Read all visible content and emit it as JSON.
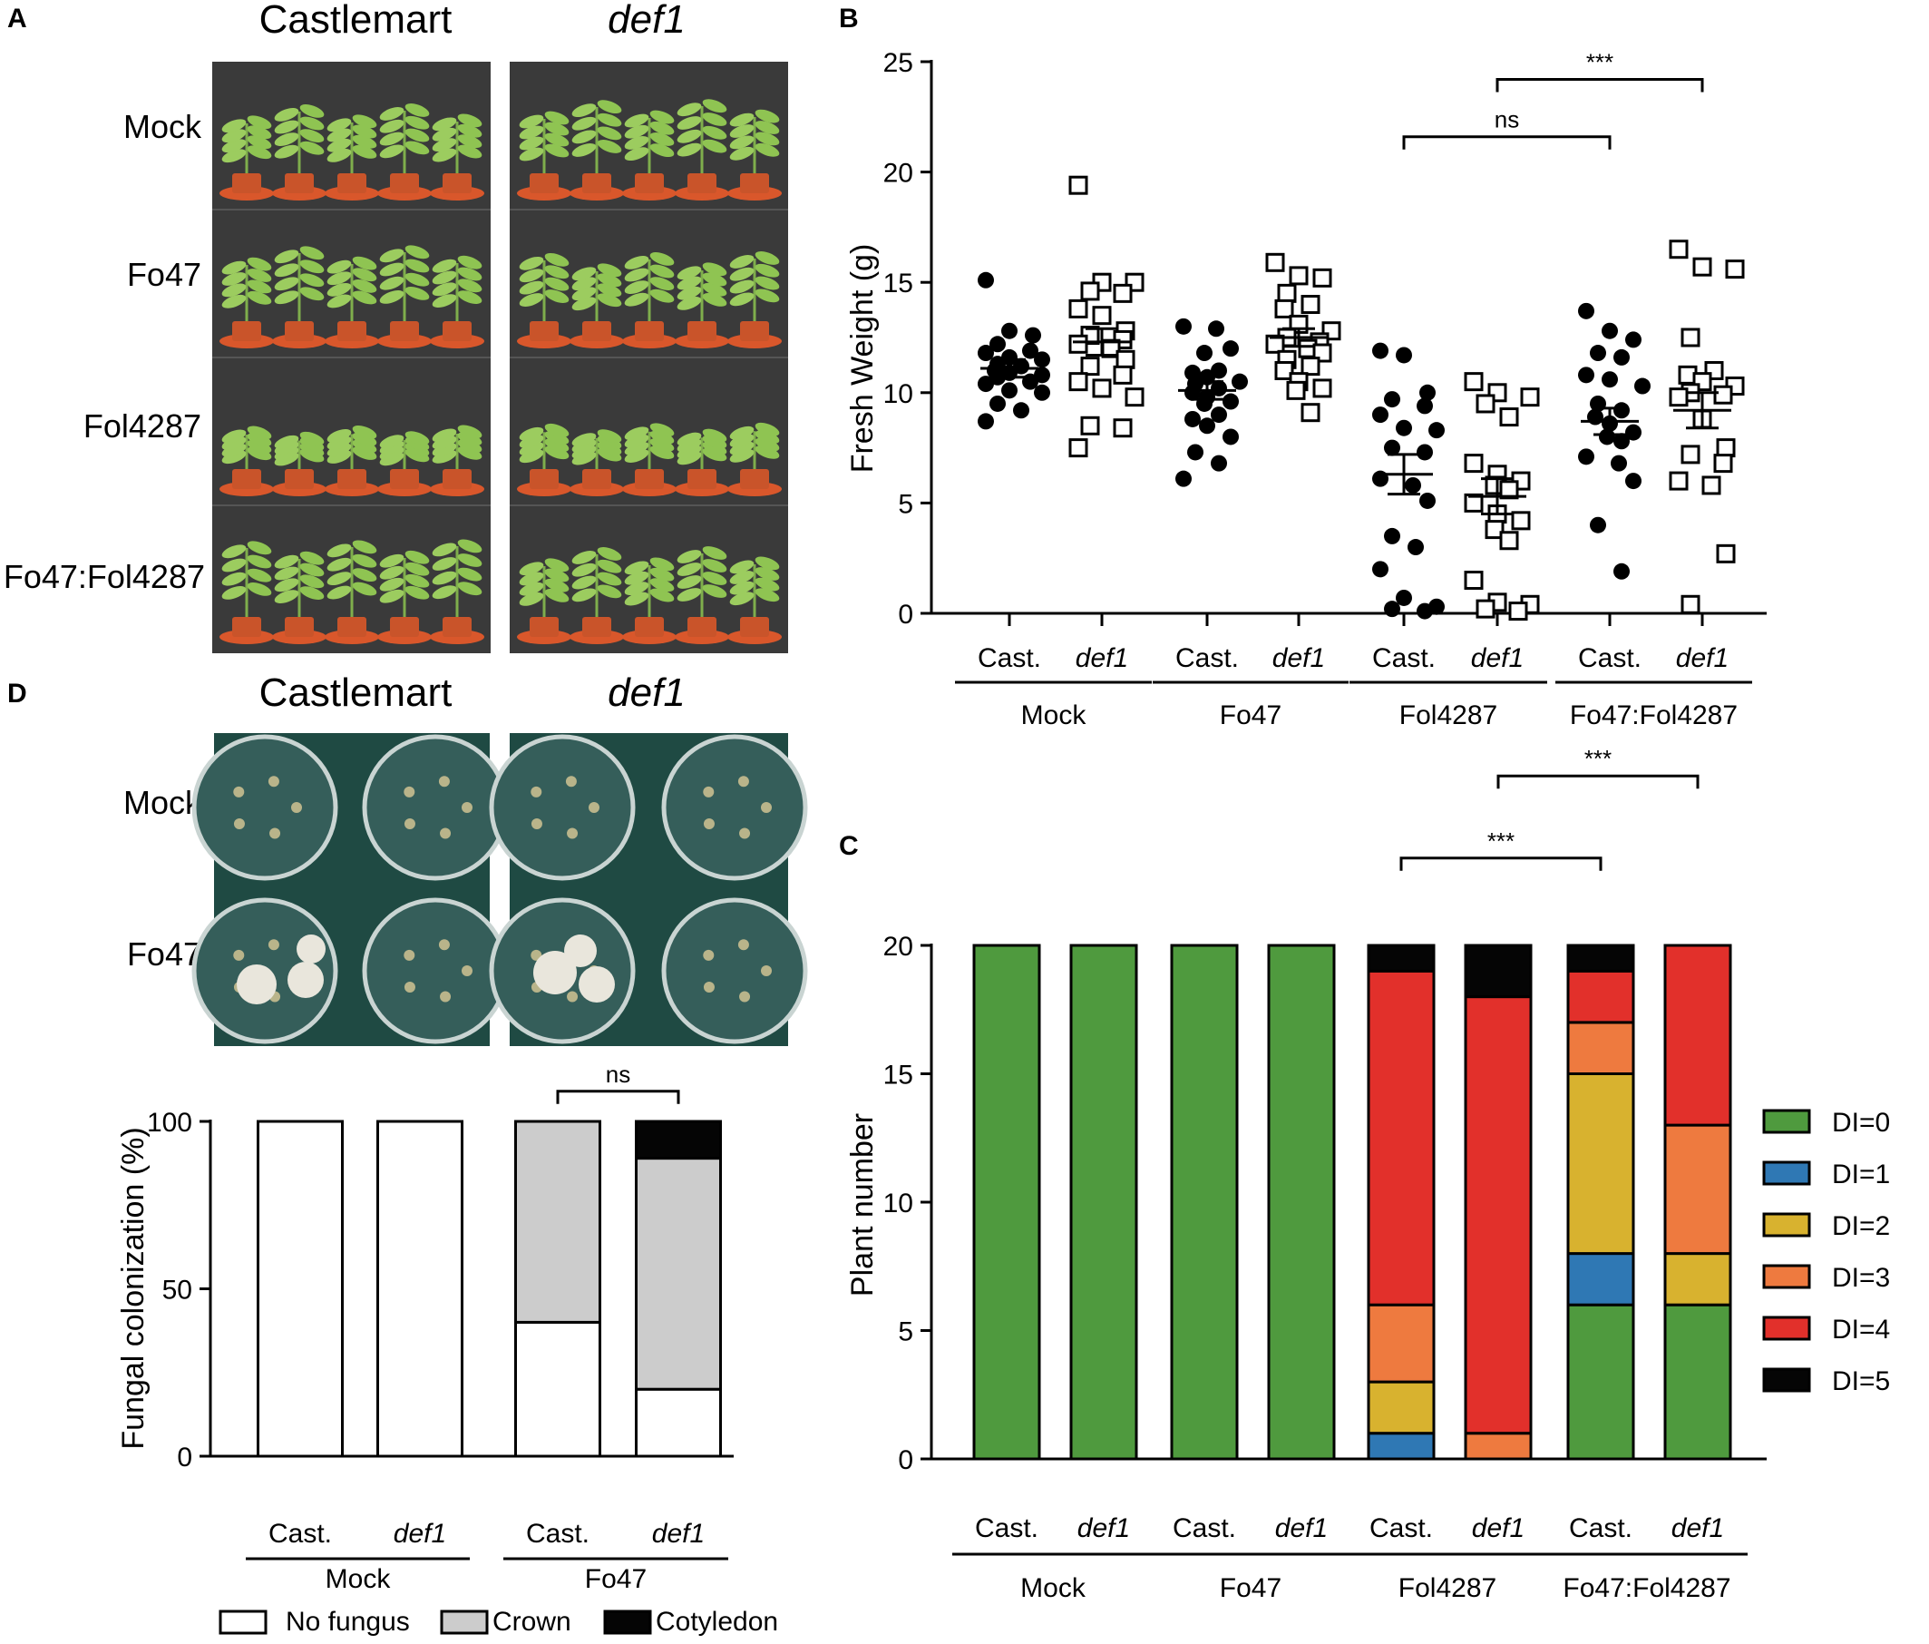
{
  "panels": {
    "A": {
      "letter": "A",
      "headers": [
        "Castlemart",
        "def1"
      ],
      "rows": [
        "Mock",
        "Fo47",
        "Fol4287",
        "Fo47:Fol4287"
      ]
    },
    "D": {
      "letter": "D",
      "headers": [
        "Castlemart",
        "def1"
      ],
      "rows": [
        "Mock",
        "Fo47"
      ]
    }
  },
  "labels": {
    "cast": "Cast.",
    "def1": "def1"
  },
  "colors": {
    "DI0": "#4f9a3e",
    "DI1": "#2f78b4",
    "DI2": "#d8b22f",
    "DI3": "#ee7a3f",
    "DI4": "#e2302b",
    "DI5": "#050505",
    "no_fungus": "#ffffff",
    "crown": "#cccccc",
    "cotyledon": "#050505",
    "photo_bg": "#3b3b3b",
    "plate_bg": "#1f4a43"
  },
  "chart_data": [
    {
      "panel": "B",
      "type": "scatter",
      "ylabel": "Fresh Weight (g)",
      "ylim": [
        0,
        25
      ],
      "yticks": [
        0,
        5,
        10,
        15,
        20,
        25
      ],
      "categories": [
        "Cast.",
        "def1",
        "Cast.",
        "def1",
        "Cast.",
        "def1",
        "Cast.",
        "def1"
      ],
      "groups": [
        "Mock",
        "Fo47",
        "Fol4287",
        "Fo47:Fol4287"
      ],
      "series": [
        {
          "group": "Mock",
          "genotype": "Cast.",
          "marker": "filled-circle",
          "values": [
            15.1,
            12.8,
            12.6,
            12.2,
            11.9,
            11.8,
            11.6,
            11.5,
            11.3,
            11.2,
            11.0,
            10.9,
            10.8,
            10.7,
            10.5,
            10.4,
            10.1,
            10.0,
            9.5,
            9.2,
            8.7
          ],
          "mean": 11.1,
          "sem": 0.4
        },
        {
          "group": "Mock",
          "genotype": "def1",
          "marker": "open-square",
          "values": [
            19.4,
            15.0,
            15.0,
            14.6,
            14.5,
            13.8,
            13.5,
            12.8,
            12.6,
            12.4,
            12.2,
            12.0,
            11.5,
            11.2,
            10.8,
            10.5,
            10.2,
            9.8,
            8.5,
            8.4,
            7.5
          ],
          "mean": 12.3,
          "sem": 0.6
        },
        {
          "group": "Fo47",
          "genotype": "Cast.",
          "marker": "filled-circle",
          "values": [
            13.0,
            12.9,
            12.0,
            11.8,
            11.0,
            10.9,
            10.7,
            10.5,
            10.4,
            10.2,
            10.0,
            9.8,
            9.6,
            9.5,
            9.0,
            8.8,
            8.5,
            8.0,
            7.3,
            6.8,
            6.1
          ],
          "mean": 10.1,
          "sem": 0.4
        },
        {
          "group": "Fo47",
          "genotype": "def1",
          "marker": "open-square",
          "values": [
            15.9,
            15.3,
            15.2,
            14.5,
            14.0,
            13.8,
            13.1,
            12.8,
            12.5,
            12.3,
            12.2,
            12.0,
            11.8,
            11.5,
            11.2,
            11.0,
            10.5,
            10.2,
            10.1,
            9.1
          ],
          "mean": 12.5,
          "sem": 0.4
        },
        {
          "group": "Fol4287",
          "genotype": "Cast.",
          "marker": "filled-circle",
          "values": [
            11.9,
            11.7,
            10.0,
            9.7,
            9.4,
            9.0,
            8.4,
            8.3,
            7.5,
            7.3,
            6.1,
            5.8,
            5.1,
            3.5,
            3.0,
            2.0,
            0.7,
            0.3,
            0.2,
            0.1
          ],
          "mean": 6.3,
          "sem": 0.9
        },
        {
          "group": "Fol4287",
          "genotype": "def1",
          "marker": "open-square",
          "values": [
            10.5,
            10.0,
            9.8,
            9.5,
            8.9,
            6.8,
            6.3,
            6.0,
            5.8,
            5.6,
            5.0,
            4.5,
            4.2,
            3.8,
            3.3,
            1.5,
            0.5,
            0.4,
            0.2,
            0.1
          ],
          "mean": 5.3,
          "sem": 0.8
        },
        {
          "group": "Fo47:Fol4287",
          "genotype": "Cast.",
          "marker": "filled-circle",
          "values": [
            13.7,
            12.8,
            12.4,
            11.8,
            11.6,
            10.8,
            10.6,
            10.3,
            9.5,
            9.2,
            8.9,
            8.6,
            8.2,
            8.0,
            7.8,
            7.1,
            6.8,
            6.0,
            4.0,
            1.9
          ],
          "mean": 8.7,
          "sem": 0.6
        },
        {
          "group": "Fo47:Fol4287",
          "genotype": "def1",
          "marker": "open-square",
          "values": [
            16.5,
            15.7,
            15.6,
            12.5,
            11.0,
            10.8,
            10.5,
            10.3,
            10.0,
            9.9,
            9.8,
            8.8,
            7.5,
            7.2,
            6.8,
            6.0,
            5.8,
            2.7,
            0.4
          ],
          "mean": 9.2,
          "sem": 0.8
        }
      ],
      "annotations": [
        {
          "text": "ns",
          "from": 4,
          "to": 6,
          "level": 21.6
        },
        {
          "text": "***",
          "from": 5,
          "to": 7,
          "level": 24.2
        }
      ]
    },
    {
      "panel": "C",
      "type": "bar",
      "stacked": true,
      "ylabel": "Plant number",
      "ylim": [
        0,
        20
      ],
      "yticks": [
        0,
        5,
        10,
        15,
        20
      ],
      "categories": [
        "Cast.",
        "def1",
        "Cast.",
        "def1",
        "Cast.",
        "def1",
        "Cast.",
        "def1"
      ],
      "groups": [
        "Mock",
        "Fo47",
        "Fol4287",
        "Fo47:Fol4287"
      ],
      "legend_position": "right",
      "series": [
        {
          "name": "DI=0",
          "color_key": "DI0",
          "values": [
            20,
            20,
            20,
            20,
            0,
            0,
            6,
            6
          ]
        },
        {
          "name": "DI=1",
          "color_key": "DI1",
          "values": [
            0,
            0,
            0,
            0,
            1,
            0,
            2,
            0
          ]
        },
        {
          "name": "DI=2",
          "color_key": "DI2",
          "values": [
            0,
            0,
            0,
            0,
            2,
            0,
            7,
            2
          ]
        },
        {
          "name": "DI=3",
          "color_key": "DI3",
          "values": [
            0,
            0,
            0,
            0,
            3,
            1,
            2,
            5
          ]
        },
        {
          "name": "DI=4",
          "color_key": "DI4",
          "values": [
            0,
            0,
            0,
            0,
            13,
            17,
            2,
            7
          ]
        },
        {
          "name": "DI=5",
          "color_key": "DI5",
          "values": [
            0,
            0,
            0,
            0,
            1,
            2,
            1,
            0
          ]
        }
      ],
      "annotations": [
        {
          "text": "***",
          "from": 4,
          "to": 6,
          "level": 23.4
        },
        {
          "text": "***",
          "from": 5,
          "to": 7,
          "level": 26.6
        }
      ]
    },
    {
      "panel": "D",
      "type": "bar",
      "stacked": true,
      "ylabel": "Fungal colonization (%)",
      "ylim": [
        0,
        100
      ],
      "yticks": [
        0,
        50,
        100
      ],
      "categories": [
        "Cast.",
        "def1",
        "Cast.",
        "def1"
      ],
      "groups": [
        "Mock",
        "Fo47"
      ],
      "legend_position": "bottom",
      "series": [
        {
          "name": "No fungus",
          "color_key": "no_fungus",
          "values": [
            100,
            100,
            40,
            20
          ]
        },
        {
          "name": "Crown",
          "color_key": "crown",
          "values": [
            0,
            0,
            60,
            69
          ]
        },
        {
          "name": "Cotyledon",
          "color_key": "cotyledon",
          "values": [
            0,
            0,
            0,
            11
          ]
        }
      ],
      "annotations": [
        {
          "text": "ns",
          "from": 2,
          "to": 3,
          "level": 109
        }
      ]
    }
  ]
}
